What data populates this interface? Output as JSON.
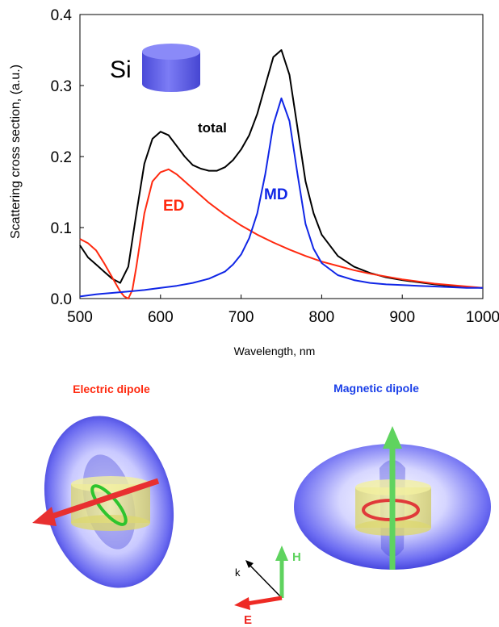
{
  "chart_data": {
    "type": "line",
    "xlabel": "Wavelength, nm",
    "ylabel": "Scattering cross section, (a.u.)",
    "xlim": [
      500,
      1000
    ],
    "ylim": [
      0,
      0.4
    ],
    "xticks": [
      "500",
      "600",
      "700",
      "800",
      "900",
      "1000"
    ],
    "yticks": [
      "0.0",
      "0.1",
      "0.2",
      "0.3",
      "0.4"
    ],
    "grid": false,
    "series": [
      {
        "name": "total",
        "color": "#000000",
        "x": [
          500,
          510,
          520,
          530,
          540,
          550,
          560,
          570,
          580,
          590,
          600,
          610,
          620,
          630,
          640,
          650,
          660,
          670,
          680,
          690,
          700,
          710,
          720,
          730,
          740,
          750,
          760,
          770,
          780,
          790,
          800,
          820,
          840,
          860,
          880,
          900,
          920,
          940,
          960,
          980,
          1000
        ],
        "y": [
          0.075,
          0.058,
          0.048,
          0.038,
          0.028,
          0.022,
          0.045,
          0.12,
          0.19,
          0.225,
          0.235,
          0.23,
          0.215,
          0.2,
          0.188,
          0.183,
          0.18,
          0.18,
          0.185,
          0.195,
          0.21,
          0.23,
          0.26,
          0.3,
          0.34,
          0.35,
          0.315,
          0.24,
          0.165,
          0.12,
          0.09,
          0.06,
          0.045,
          0.036,
          0.03,
          0.026,
          0.023,
          0.02,
          0.018,
          0.016,
          0.015
        ]
      },
      {
        "name": "ED",
        "color": "#ff2a10",
        "x": [
          500,
          510,
          520,
          530,
          540,
          550,
          555,
          560,
          565,
          570,
          580,
          590,
          600,
          610,
          620,
          630,
          640,
          650,
          660,
          680,
          700,
          720,
          740,
          760,
          780,
          800,
          820,
          840,
          860,
          880,
          900,
          920,
          940,
          960,
          980,
          1000
        ],
        "y": [
          0.084,
          0.078,
          0.068,
          0.05,
          0.03,
          0.01,
          0.003,
          0.0,
          0.012,
          0.045,
          0.12,
          0.165,
          0.178,
          0.182,
          0.175,
          0.165,
          0.155,
          0.145,
          0.135,
          0.118,
          0.103,
          0.09,
          0.079,
          0.069,
          0.06,
          0.052,
          0.046,
          0.04,
          0.035,
          0.031,
          0.027,
          0.024,
          0.021,
          0.019,
          0.017,
          0.015
        ]
      },
      {
        "name": "MD",
        "color": "#1026e6",
        "x": [
          500,
          520,
          540,
          560,
          580,
          600,
          620,
          640,
          660,
          680,
          690,
          700,
          710,
          720,
          730,
          740,
          750,
          760,
          770,
          780,
          790,
          800,
          820,
          840,
          860,
          880,
          900,
          920,
          940,
          960,
          980,
          1000
        ],
        "y": [
          0.003,
          0.006,
          0.008,
          0.01,
          0.012,
          0.015,
          0.018,
          0.022,
          0.028,
          0.038,
          0.048,
          0.062,
          0.085,
          0.12,
          0.175,
          0.245,
          0.282,
          0.25,
          0.175,
          0.105,
          0.07,
          0.05,
          0.033,
          0.026,
          0.022,
          0.02,
          0.019,
          0.018,
          0.017,
          0.016,
          0.015,
          0.015
        ]
      }
    ]
  },
  "labels": {
    "si": "Si",
    "total": "total",
    "ed": "ED",
    "md": "MD"
  },
  "dipoles": {
    "electric_title": "Electric dipole",
    "magnetic_title": "Magnetic dipole",
    "electric_color": "#ff2a10",
    "magnetic_color": "#1a3fe8"
  },
  "axes_legend": {
    "k": "k",
    "h": "H",
    "e": "E",
    "h_color": "#5fd35f",
    "e_color": "#ee2a24"
  }
}
